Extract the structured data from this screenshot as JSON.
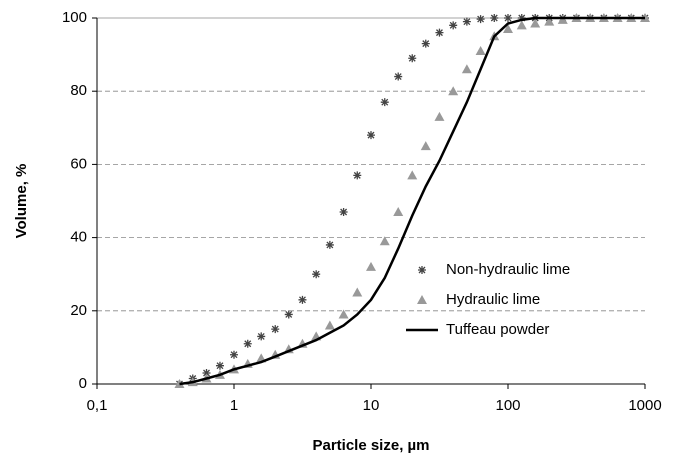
{
  "chart_data": {
    "type": "scatter",
    "xlabel": "Particle size, µm",
    "ylabel": "Volume, %",
    "xscale": "log",
    "xlim": [
      0.1,
      1000
    ],
    "ylim": [
      0,
      100
    ],
    "xticks": [
      {
        "value": 0.1,
        "label": "0,1"
      },
      1,
      10,
      100,
      1000
    ],
    "yticks": [
      0,
      20,
      40,
      60,
      80,
      100
    ],
    "grid": true,
    "legend": "lower right",
    "series": [
      {
        "name": "Non-hydraulic lime",
        "marker": "asterisk",
        "color": "#444444",
        "x": [
          0.4,
          0.5,
          0.63,
          0.79,
          1,
          1.26,
          1.58,
          2,
          2.51,
          3.16,
          3.98,
          5.01,
          6.31,
          7.94,
          10,
          12.6,
          15.8,
          20,
          25.1,
          31.6,
          39.8,
          50.1,
          63.1,
          79.4,
          100,
          126,
          158,
          200,
          251,
          316,
          398,
          501,
          631,
          794,
          1000
        ],
        "values": [
          0,
          1.5,
          3,
          5,
          8,
          11,
          13,
          15,
          19,
          23,
          30,
          38,
          47,
          57,
          68,
          77,
          84,
          89,
          93,
          96,
          98,
          99,
          99.7,
          100,
          100,
          100,
          100,
          100,
          100,
          100,
          100,
          100,
          100,
          100,
          100
        ]
      },
      {
        "name": "Hydraulic lime",
        "marker": "triangle",
        "color": "#999999",
        "x": [
          0.4,
          0.5,
          0.63,
          0.79,
          1,
          1.26,
          1.58,
          2,
          2.51,
          3.16,
          3.98,
          5.01,
          6.31,
          7.94,
          10,
          12.6,
          15.8,
          20,
          25.1,
          31.6,
          39.8,
          50.1,
          63.1,
          79.4,
          100,
          126,
          158,
          200,
          251,
          316,
          398,
          501,
          631,
          794,
          1000
        ],
        "values": [
          0,
          0.5,
          1.5,
          2.5,
          4,
          5.5,
          7,
          8,
          9.5,
          11,
          13,
          16,
          19,
          25,
          32,
          39,
          47,
          57,
          65,
          73,
          80,
          86,
          91,
          95,
          97,
          98,
          98.5,
          99,
          99.5,
          100,
          100,
          100,
          100,
          100,
          100
        ]
      },
      {
        "name": "Tuffeau powder",
        "marker": "line",
        "color": "#000000",
        "x": [
          0.4,
          0.5,
          0.63,
          0.79,
          1,
          1.26,
          1.58,
          2,
          2.51,
          3.16,
          3.98,
          5.01,
          6.31,
          7.94,
          10,
          12.6,
          15.8,
          20,
          25.1,
          31.6,
          39.8,
          50.1,
          63.1,
          79.4,
          100,
          126,
          158,
          200,
          251,
          316,
          398,
          501,
          631,
          794,
          1000
        ],
        "values": [
          0,
          0.5,
          1.5,
          2.5,
          4,
          5,
          6,
          7.5,
          9,
          10.5,
          12,
          14,
          16,
          19,
          23,
          29,
          37,
          46,
          54,
          61,
          69,
          77,
          86,
          95,
          98.5,
          99.5,
          100,
          100,
          100,
          100,
          100,
          100,
          100,
          100,
          100
        ]
      }
    ]
  }
}
